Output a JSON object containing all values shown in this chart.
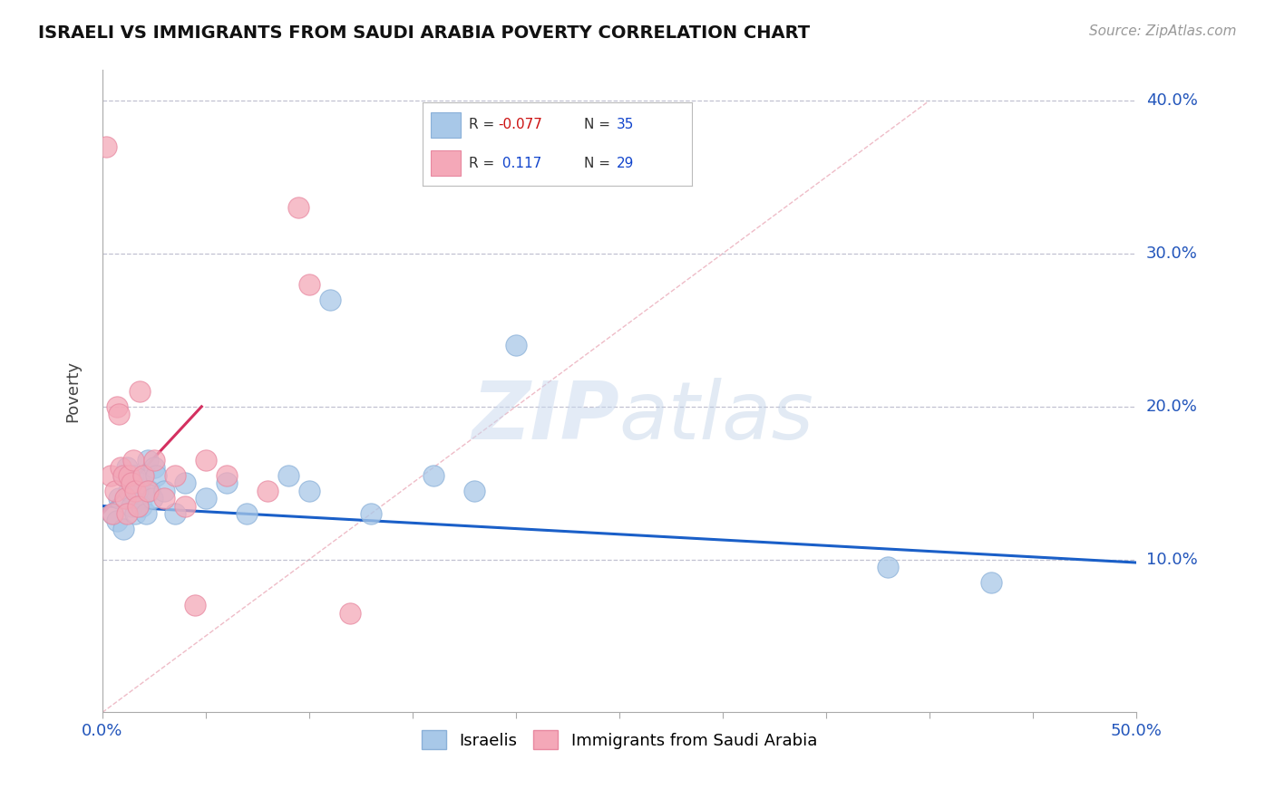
{
  "title": "ISRAELI VS IMMIGRANTS FROM SAUDI ARABIA POVERTY CORRELATION CHART",
  "source": "Source: ZipAtlas.com",
  "ylabel": "Poverty",
  "yticks": [
    0.1,
    0.2,
    0.3,
    0.4
  ],
  "ytick_labels": [
    "10.0%",
    "20.0%",
    "30.0%",
    "40.0%"
  ],
  "xmin": 0.0,
  "xmax": 0.5,
  "ymin": 0.0,
  "ymax": 0.42,
  "legend_blue_r": "-0.077",
  "legend_blue_n": "35",
  "legend_pink_r": "0.117",
  "legend_pink_n": "29",
  "legend_label_blue": "Israelis",
  "legend_label_pink": "Immigrants from Saudi Arabia",
  "blue_color": "#a8c8e8",
  "pink_color": "#f4a8b8",
  "blue_scatter_x": [
    0.005,
    0.007,
    0.008,
    0.01,
    0.01,
    0.012,
    0.013,
    0.014,
    0.015,
    0.016,
    0.017,
    0.018,
    0.019,
    0.02,
    0.021,
    0.022,
    0.023,
    0.024,
    0.025,
    0.026,
    0.03,
    0.035,
    0.04,
    0.05,
    0.06,
    0.07,
    0.09,
    0.1,
    0.11,
    0.13,
    0.16,
    0.18,
    0.2,
    0.38,
    0.43
  ],
  "blue_scatter_y": [
    0.13,
    0.125,
    0.14,
    0.155,
    0.12,
    0.16,
    0.145,
    0.135,
    0.155,
    0.13,
    0.145,
    0.15,
    0.135,
    0.155,
    0.13,
    0.165,
    0.145,
    0.14,
    0.16,
    0.155,
    0.145,
    0.13,
    0.15,
    0.14,
    0.15,
    0.13,
    0.155,
    0.145,
    0.27,
    0.13,
    0.155,
    0.145,
    0.24,
    0.095,
    0.085
  ],
  "pink_scatter_x": [
    0.002,
    0.004,
    0.005,
    0.006,
    0.007,
    0.008,
    0.009,
    0.01,
    0.011,
    0.012,
    0.013,
    0.014,
    0.015,
    0.016,
    0.017,
    0.018,
    0.02,
    0.022,
    0.025,
    0.03,
    0.035,
    0.04,
    0.045,
    0.05,
    0.06,
    0.08,
    0.095,
    0.1,
    0.12
  ],
  "pink_scatter_y": [
    0.37,
    0.155,
    0.13,
    0.145,
    0.2,
    0.195,
    0.16,
    0.155,
    0.14,
    0.13,
    0.155,
    0.15,
    0.165,
    0.145,
    0.135,
    0.21,
    0.155,
    0.145,
    0.165,
    0.14,
    0.155,
    0.135,
    0.07,
    0.165,
    0.155,
    0.145,
    0.33,
    0.28,
    0.065
  ],
  "blue_line_x": [
    0.0,
    0.5
  ],
  "blue_line_y": [
    0.135,
    0.098
  ],
  "pink_line_x": [
    0.0,
    0.048
  ],
  "pink_line_y": [
    0.13,
    0.2
  ],
  "diag_line_x": [
    0.0,
    0.4
  ],
  "diag_line_y": [
    0.0,
    0.4
  ],
  "watermark_zip": "ZIP",
  "watermark_atlas": "atlas",
  "background_color": "#ffffff",
  "grid_color": "#cccccc"
}
